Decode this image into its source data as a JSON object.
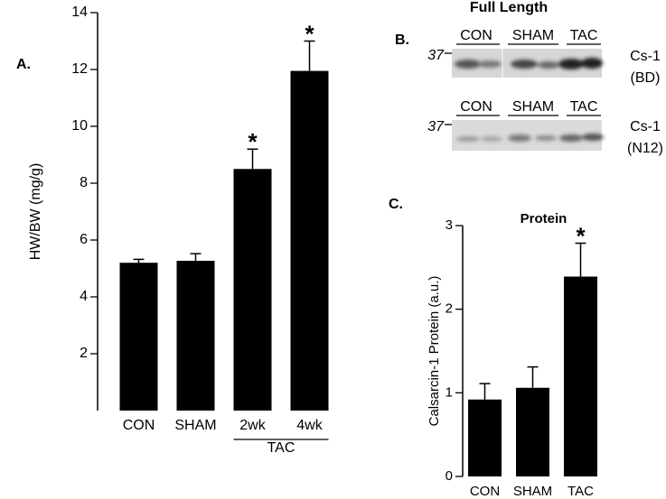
{
  "chart_data": [
    {
      "type": "bar",
      "panel_label": "A.",
      "y_label": "HW/BW (mg/g)",
      "categories": [
        "CON",
        "SHAM",
        "2wk",
        "4wk"
      ],
      "values": [
        5.2,
        5.27,
        8.5,
        11.95
      ],
      "errors": [
        0.12,
        0.25,
        0.7,
        1.05
      ],
      "color": "#000000",
      "ylim": [
        0,
        14
      ],
      "yticks": [
        2,
        4,
        6,
        8,
        10,
        12,
        14
      ],
      "annotations": [
        {
          "category": "2wk",
          "text": "*"
        },
        {
          "category": "4wk",
          "text": "*"
        }
      ],
      "groups": [
        {
          "label": "TAC",
          "categories": [
            "2wk",
            "4wk"
          ]
        }
      ]
    },
    {
      "type": "bar",
      "panel_label": "C.",
      "title": "Protein",
      "y_label": "Calsarcin-1 Protein (a.u.)",
      "categories": [
        "CON",
        "SHAM",
        "TAC"
      ],
      "values": [
        0.92,
        1.06,
        2.39
      ],
      "errors": [
        0.19,
        0.25,
        0.4
      ],
      "color": "#000000",
      "ylim": [
        0,
        3
      ],
      "yticks": [
        0,
        1,
        2,
        3
      ],
      "annotations": [
        {
          "category": "TAC",
          "text": "*"
        }
      ]
    }
  ],
  "blot": {
    "panel_label": "B.",
    "title": "Full Length",
    "rows": [
      {
        "marker": "37",
        "lanes": [
          "CON",
          "SHAM",
          "TAC"
        ],
        "label": "Cs-1",
        "antibody": "(BD)"
      },
      {
        "marker": "37",
        "lanes": [
          "CON",
          "SHAM",
          "TAC"
        ],
        "label": "Cs-1",
        "antibody": "(N12)"
      }
    ]
  }
}
